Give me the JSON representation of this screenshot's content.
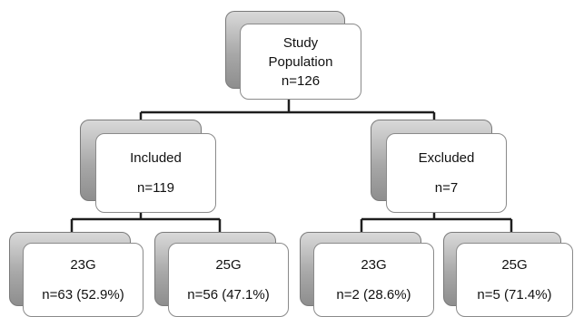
{
  "root": {
    "line1": "Study",
    "line2": "Population",
    "count": "n=126"
  },
  "included": {
    "label": "Included",
    "count": "n=119"
  },
  "excluded": {
    "label": "Excluded",
    "count": "n=7"
  },
  "leaves": [
    {
      "label": "23G",
      "count": "n=63 (52.9%)"
    },
    {
      "label": "25G",
      "count": "n=56 (47.1%)"
    },
    {
      "label": "23G",
      "count": "n=2 (28.6%)"
    },
    {
      "label": "25G",
      "count": "n=5 (71.4%)"
    }
  ]
}
